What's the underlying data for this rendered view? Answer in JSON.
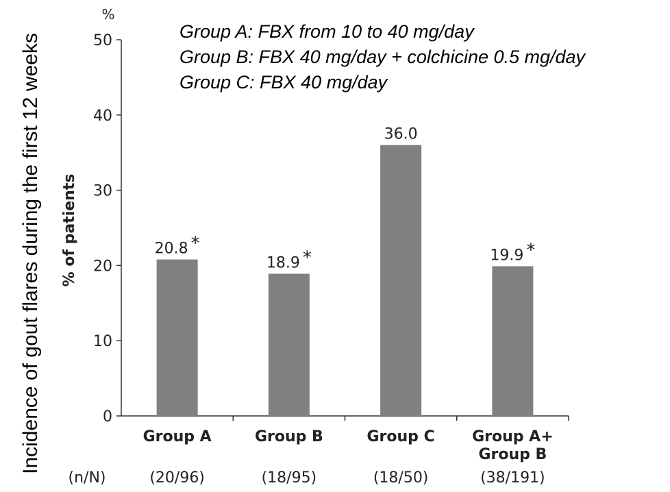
{
  "outer_ylabel": "Incidence of gout flares during the first 12 weeks",
  "legend": [
    "Group A: FBX from 10 to 40 mg/day",
    "Group B: FBX 40 mg/day + colchicine 0.5 mg/day",
    "Group C: FBX 40 mg/day"
  ],
  "chart_data": {
    "type": "bar",
    "unit": "%",
    "ylabel": "% of patients",
    "ylim": [
      0,
      50
    ],
    "yticks": [
      "0",
      "10",
      "20",
      "30",
      "40",
      "50"
    ],
    "categories": [
      [
        "Group A"
      ],
      [
        "Group B"
      ],
      [
        "Group C"
      ],
      [
        "Group A+",
        "Group B"
      ]
    ],
    "values": [
      20.8,
      18.9,
      36.0,
      19.9
    ],
    "value_labels": [
      "20.8",
      "18.9",
      "36.0",
      "19.9"
    ],
    "significance": [
      "*",
      "*",
      "",
      "*"
    ],
    "counts_header": "(n/N)",
    "counts": [
      "(20/96)",
      "(18/95)",
      "(18/50)",
      "(38/191)"
    ],
    "bar_color": "#808080",
    "grid": false
  }
}
